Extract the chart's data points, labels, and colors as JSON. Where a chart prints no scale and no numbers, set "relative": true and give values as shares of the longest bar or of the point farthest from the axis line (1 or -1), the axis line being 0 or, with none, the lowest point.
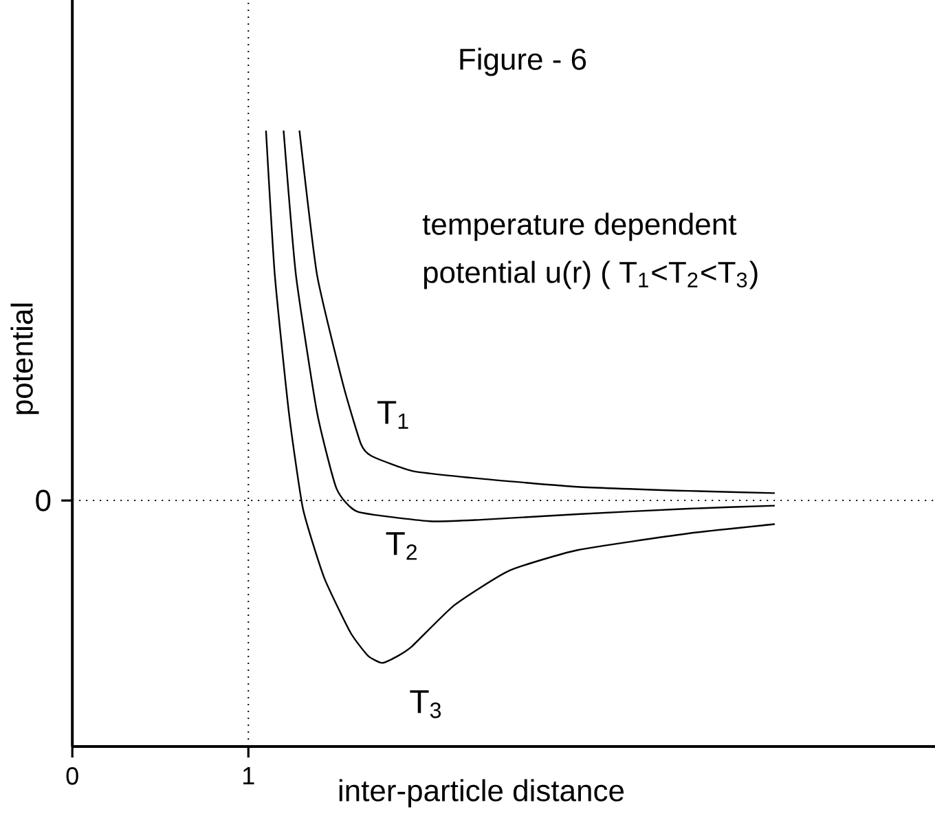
{
  "chart_data": {
    "type": "line",
    "title": "Figure - 6",
    "xlabel": "inter-particle distance",
    "ylabel": "potential",
    "annotations": [
      "temperature dependent",
      "potential u(r) ( T$_{1}$<T$_{2}$<T$_{3}$)"
    ],
    "relative": true,
    "xlim": [
      0,
      4.9
    ],
    "xticks": [
      0,
      1
    ],
    "marker": "none",
    "line_style": "solid",
    "ref_lines": [
      {
        "axis": "x",
        "value": 1,
        "line_style": "dotted"
      },
      {
        "axis": "y",
        "value": 0,
        "label": "0",
        "line_style": "dotted"
      }
    ],
    "series": [
      {
        "name": "T$_{1}$",
        "color": "#000000",
        "x": [
          1.29,
          1.39,
          1.54,
          1.64,
          1.7,
          1.93,
          2.32,
          2.87,
          3.5,
          3.99
        ],
        "values": [
          1,
          0.61,
          0.31,
          0.152,
          0.12,
          0.08,
          0.059,
          0.037,
          0.026,
          0.02
        ]
      },
      {
        "name": "T$_{2}$",
        "color": "#000000",
        "x": [
          1.2,
          1.27,
          1.39,
          1.5,
          1.62,
          2.03,
          2.32,
          2.87,
          3.5,
          3.99
        ],
        "values": [
          1,
          0.61,
          0.238,
          0.033,
          -0.03,
          -0.056,
          -0.052,
          -0.037,
          -0.022,
          -0.014
        ]
      },
      {
        "name": "T$_{3}$",
        "color": "#000000",
        "x": [
          1.1,
          1.15,
          1.23,
          1.31,
          1.43,
          1.58,
          1.68,
          1.76,
          1.85,
          1.93,
          2.17,
          2.48,
          2.87,
          3.5,
          3.99
        ],
        "values": [
          1,
          0.61,
          0.238,
          -0.022,
          -0.208,
          -0.357,
          -0.42,
          -0.439,
          -0.42,
          -0.394,
          -0.283,
          -0.19,
          -0.134,
          -0.089,
          -0.064
        ]
      }
    ]
  }
}
